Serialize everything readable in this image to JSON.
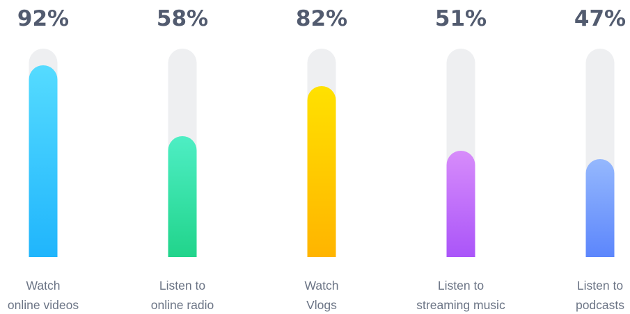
{
  "chart_data": {
    "type": "bar",
    "orientation": "vertical",
    "grid": false,
    "legend": "none",
    "ylim": [
      0,
      100
    ],
    "unit": "%",
    "track_color": "#eeeff1",
    "value_label_color": "#525b6f",
    "category_label_color": "#6b7485",
    "categories": [
      [
        "Watch",
        "online videos"
      ],
      [
        "Listen to",
        "online radio"
      ],
      [
        "Watch",
        "Vlogs"
      ],
      [
        "Listen to",
        "streaming music"
      ],
      [
        "Listen to",
        "podcasts"
      ]
    ],
    "values": [
      92,
      58,
      82,
      51,
      47
    ],
    "value_labels": [
      "92%",
      "58%",
      "82%",
      "51%",
      "47%"
    ],
    "colors": [
      {
        "top": "#55dbff",
        "bottom": "#20b5fc"
      },
      {
        "top": "#4eeec4",
        "bottom": "#21d48b"
      },
      {
        "top": "#ffe100",
        "bottom": "#ffb400"
      },
      {
        "top": "#d78cfa",
        "bottom": "#aa55f9"
      },
      {
        "top": "#95b8fd",
        "bottom": "#5c86fc"
      }
    ]
  }
}
